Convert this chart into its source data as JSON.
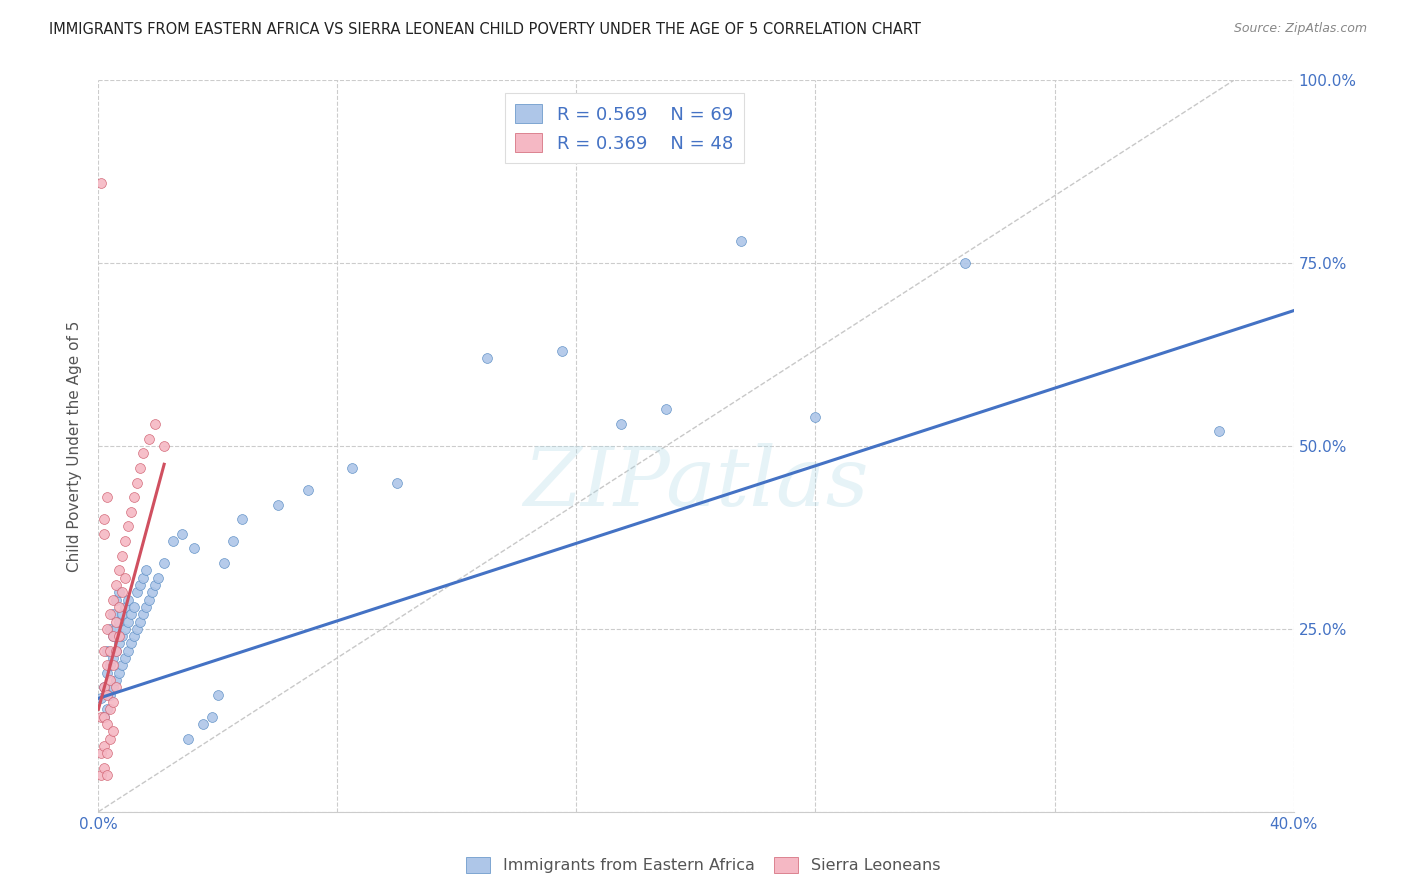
{
  "title": "IMMIGRANTS FROM EASTERN AFRICA VS SIERRA LEONEAN CHILD POVERTY UNDER THE AGE OF 5 CORRELATION CHART",
  "source": "Source: ZipAtlas.com",
  "ylabel": "Child Poverty Under the Age of 5",
  "xlim": [
    0.0,
    0.4
  ],
  "ylim": [
    0.0,
    1.0
  ],
  "x_ticks": [
    0.0,
    0.08,
    0.16,
    0.24,
    0.32,
    0.4
  ],
  "x_tick_labels": [
    "0.0%",
    "",
    "",
    "",
    "",
    "40.0%"
  ],
  "y_ticks": [
    0.0,
    0.25,
    0.5,
    0.75,
    1.0
  ],
  "y_tick_labels_right": [
    "",
    "25.0%",
    "50.0%",
    "75.0%",
    "100.0%"
  ],
  "blue_R": 0.569,
  "blue_N": 69,
  "pink_R": 0.369,
  "pink_N": 48,
  "blue_color": "#aec6e8",
  "pink_color": "#f5b8c4",
  "blue_edge_color": "#5b8ec4",
  "pink_edge_color": "#d06070",
  "blue_line_color": "#4472c4",
  "pink_line_color": "#d05060",
  "diagonal_color": "#c8c8c8",
  "watermark": "ZIPatlas",
  "watermark_color": "#add8e6",
  "legend_text_color": "#4472c4",
  "tick_color": "#4472c4",
  "blue_line": [
    [
      0.0,
      0.155
    ],
    [
      0.4,
      0.685
    ]
  ],
  "pink_line": [
    [
      0.0,
      0.14
    ],
    [
      0.022,
      0.475
    ]
  ],
  "blue_scatter": [
    [
      0.001,
      0.155
    ],
    [
      0.002,
      0.13
    ],
    [
      0.002,
      0.17
    ],
    [
      0.003,
      0.14
    ],
    [
      0.003,
      0.19
    ],
    [
      0.003,
      0.22
    ],
    [
      0.004,
      0.16
    ],
    [
      0.004,
      0.2
    ],
    [
      0.004,
      0.25
    ],
    [
      0.005,
      0.17
    ],
    [
      0.005,
      0.21
    ],
    [
      0.005,
      0.24
    ],
    [
      0.005,
      0.27
    ],
    [
      0.006,
      0.18
    ],
    [
      0.006,
      0.22
    ],
    [
      0.006,
      0.25
    ],
    [
      0.006,
      0.29
    ],
    [
      0.007,
      0.19
    ],
    [
      0.007,
      0.23
    ],
    [
      0.007,
      0.26
    ],
    [
      0.007,
      0.3
    ],
    [
      0.008,
      0.2
    ],
    [
      0.008,
      0.24
    ],
    [
      0.008,
      0.27
    ],
    [
      0.009,
      0.21
    ],
    [
      0.009,
      0.25
    ],
    [
      0.009,
      0.28
    ],
    [
      0.01,
      0.22
    ],
    [
      0.01,
      0.26
    ],
    [
      0.01,
      0.29
    ],
    [
      0.011,
      0.23
    ],
    [
      0.011,
      0.27
    ],
    [
      0.012,
      0.24
    ],
    [
      0.012,
      0.28
    ],
    [
      0.013,
      0.25
    ],
    [
      0.013,
      0.3
    ],
    [
      0.014,
      0.26
    ],
    [
      0.014,
      0.31
    ],
    [
      0.015,
      0.27
    ],
    [
      0.015,
      0.32
    ],
    [
      0.016,
      0.28
    ],
    [
      0.016,
      0.33
    ],
    [
      0.017,
      0.29
    ],
    [
      0.018,
      0.3
    ],
    [
      0.019,
      0.31
    ],
    [
      0.02,
      0.32
    ],
    [
      0.022,
      0.34
    ],
    [
      0.025,
      0.37
    ],
    [
      0.028,
      0.38
    ],
    [
      0.032,
      0.36
    ],
    [
      0.035,
      0.12
    ],
    [
      0.038,
      0.13
    ],
    [
      0.04,
      0.16
    ],
    [
      0.042,
      0.34
    ],
    [
      0.045,
      0.37
    ],
    [
      0.048,
      0.4
    ],
    [
      0.06,
      0.42
    ],
    [
      0.07,
      0.44
    ],
    [
      0.085,
      0.47
    ],
    [
      0.1,
      0.45
    ],
    [
      0.13,
      0.62
    ],
    [
      0.155,
      0.63
    ],
    [
      0.175,
      0.53
    ],
    [
      0.19,
      0.55
    ],
    [
      0.215,
      0.78
    ],
    [
      0.24,
      0.54
    ],
    [
      0.29,
      0.75
    ],
    [
      0.375,
      0.52
    ],
    [
      0.03,
      0.1
    ]
  ],
  "pink_scatter": [
    [
      0.001,
      0.86
    ],
    [
      0.001,
      0.13
    ],
    [
      0.001,
      0.08
    ],
    [
      0.001,
      0.05
    ],
    [
      0.002,
      0.4
    ],
    [
      0.002,
      0.38
    ],
    [
      0.002,
      0.22
    ],
    [
      0.002,
      0.17
    ],
    [
      0.002,
      0.13
    ],
    [
      0.002,
      0.09
    ],
    [
      0.002,
      0.06
    ],
    [
      0.003,
      0.43
    ],
    [
      0.003,
      0.25
    ],
    [
      0.003,
      0.2
    ],
    [
      0.003,
      0.16
    ],
    [
      0.003,
      0.12
    ],
    [
      0.003,
      0.08
    ],
    [
      0.003,
      0.05
    ],
    [
      0.004,
      0.27
    ],
    [
      0.004,
      0.22
    ],
    [
      0.004,
      0.18
    ],
    [
      0.004,
      0.14
    ],
    [
      0.004,
      0.1
    ],
    [
      0.005,
      0.29
    ],
    [
      0.005,
      0.24
    ],
    [
      0.005,
      0.2
    ],
    [
      0.005,
      0.15
    ],
    [
      0.005,
      0.11
    ],
    [
      0.006,
      0.31
    ],
    [
      0.006,
      0.26
    ],
    [
      0.006,
      0.22
    ],
    [
      0.006,
      0.17
    ],
    [
      0.007,
      0.33
    ],
    [
      0.007,
      0.28
    ],
    [
      0.007,
      0.24
    ],
    [
      0.008,
      0.35
    ],
    [
      0.008,
      0.3
    ],
    [
      0.009,
      0.37
    ],
    [
      0.009,
      0.32
    ],
    [
      0.01,
      0.39
    ],
    [
      0.011,
      0.41
    ],
    [
      0.012,
      0.43
    ],
    [
      0.013,
      0.45
    ],
    [
      0.014,
      0.47
    ],
    [
      0.015,
      0.49
    ],
    [
      0.017,
      0.51
    ],
    [
      0.019,
      0.53
    ],
    [
      0.022,
      0.5
    ]
  ]
}
